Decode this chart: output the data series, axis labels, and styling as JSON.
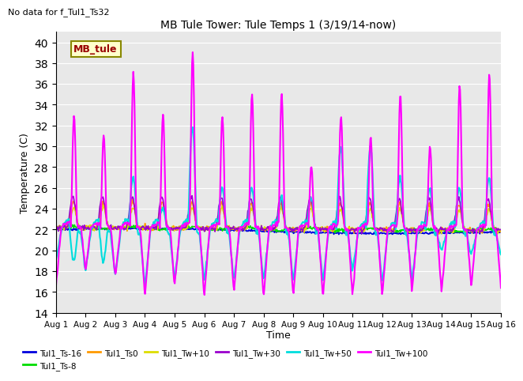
{
  "title": "MB Tule Tower: Tule Temps 1 (3/19/14-now)",
  "no_data_text": "No data for f_Tul1_Ts32",
  "ylabel": "Temperature (C)",
  "xlabel": "Time",
  "ylim": [
    14,
    41
  ],
  "yticks": [
    14,
    16,
    18,
    20,
    22,
    24,
    26,
    28,
    30,
    32,
    34,
    36,
    38,
    40
  ],
  "bg_color": "#e8e8e8",
  "legend_label": "MB_tule",
  "legend_box_color": "#ffffcc",
  "legend_box_edge": "#888800",
  "series_colors": {
    "Tul1_Ts-16": "#0000dd",
    "Tul1_Ts-8": "#00dd00",
    "Tul1_Ts0": "#ff9900",
    "Tul1_Tw+10": "#dddd00",
    "Tul1_Tw+30": "#9900cc",
    "Tul1_Tw+50": "#00dddd",
    "Tul1_Tw+100": "#ff00ff"
  },
  "xstart": 0,
  "xend": 15,
  "xtick_labels": [
    "Aug 1",
    "Aug 2",
    "Aug 3",
    "Aug 4",
    "Aug 5",
    "Aug 6",
    "Aug 7",
    "Aug 8",
    "Aug 9",
    "Aug 10",
    "Aug 11",
    "Aug 12",
    "Aug 13",
    "Aug 14",
    "Aug 15",
    "Aug 16"
  ],
  "n_points": 720,
  "base_temp": 22.2,
  "ts16_drift": -0.02,
  "peak_heights_magenta": [
    33,
    31,
    37,
    33,
    39,
    33,
    35,
    35,
    28,
    33,
    31,
    35,
    30,
    36,
    37
  ],
  "peak_heights_cyan": [
    19,
    19,
    27,
    24,
    32,
    26,
    26,
    25,
    25,
    30,
    30,
    27,
    26,
    26,
    27
  ],
  "trough_magenta": [
    16.5,
    18,
    17.5,
    15.5,
    16.5,
    15.5,
    16,
    15.5,
    15.5,
    15.5,
    15.5,
    15.5,
    16,
    16,
    16.5
  ],
  "trough_cyan": [
    19,
    18,
    17.5,
    16.5,
    17,
    17,
    17,
    17,
    17,
    17,
    18,
    17,
    17,
    20,
    19.5
  ]
}
